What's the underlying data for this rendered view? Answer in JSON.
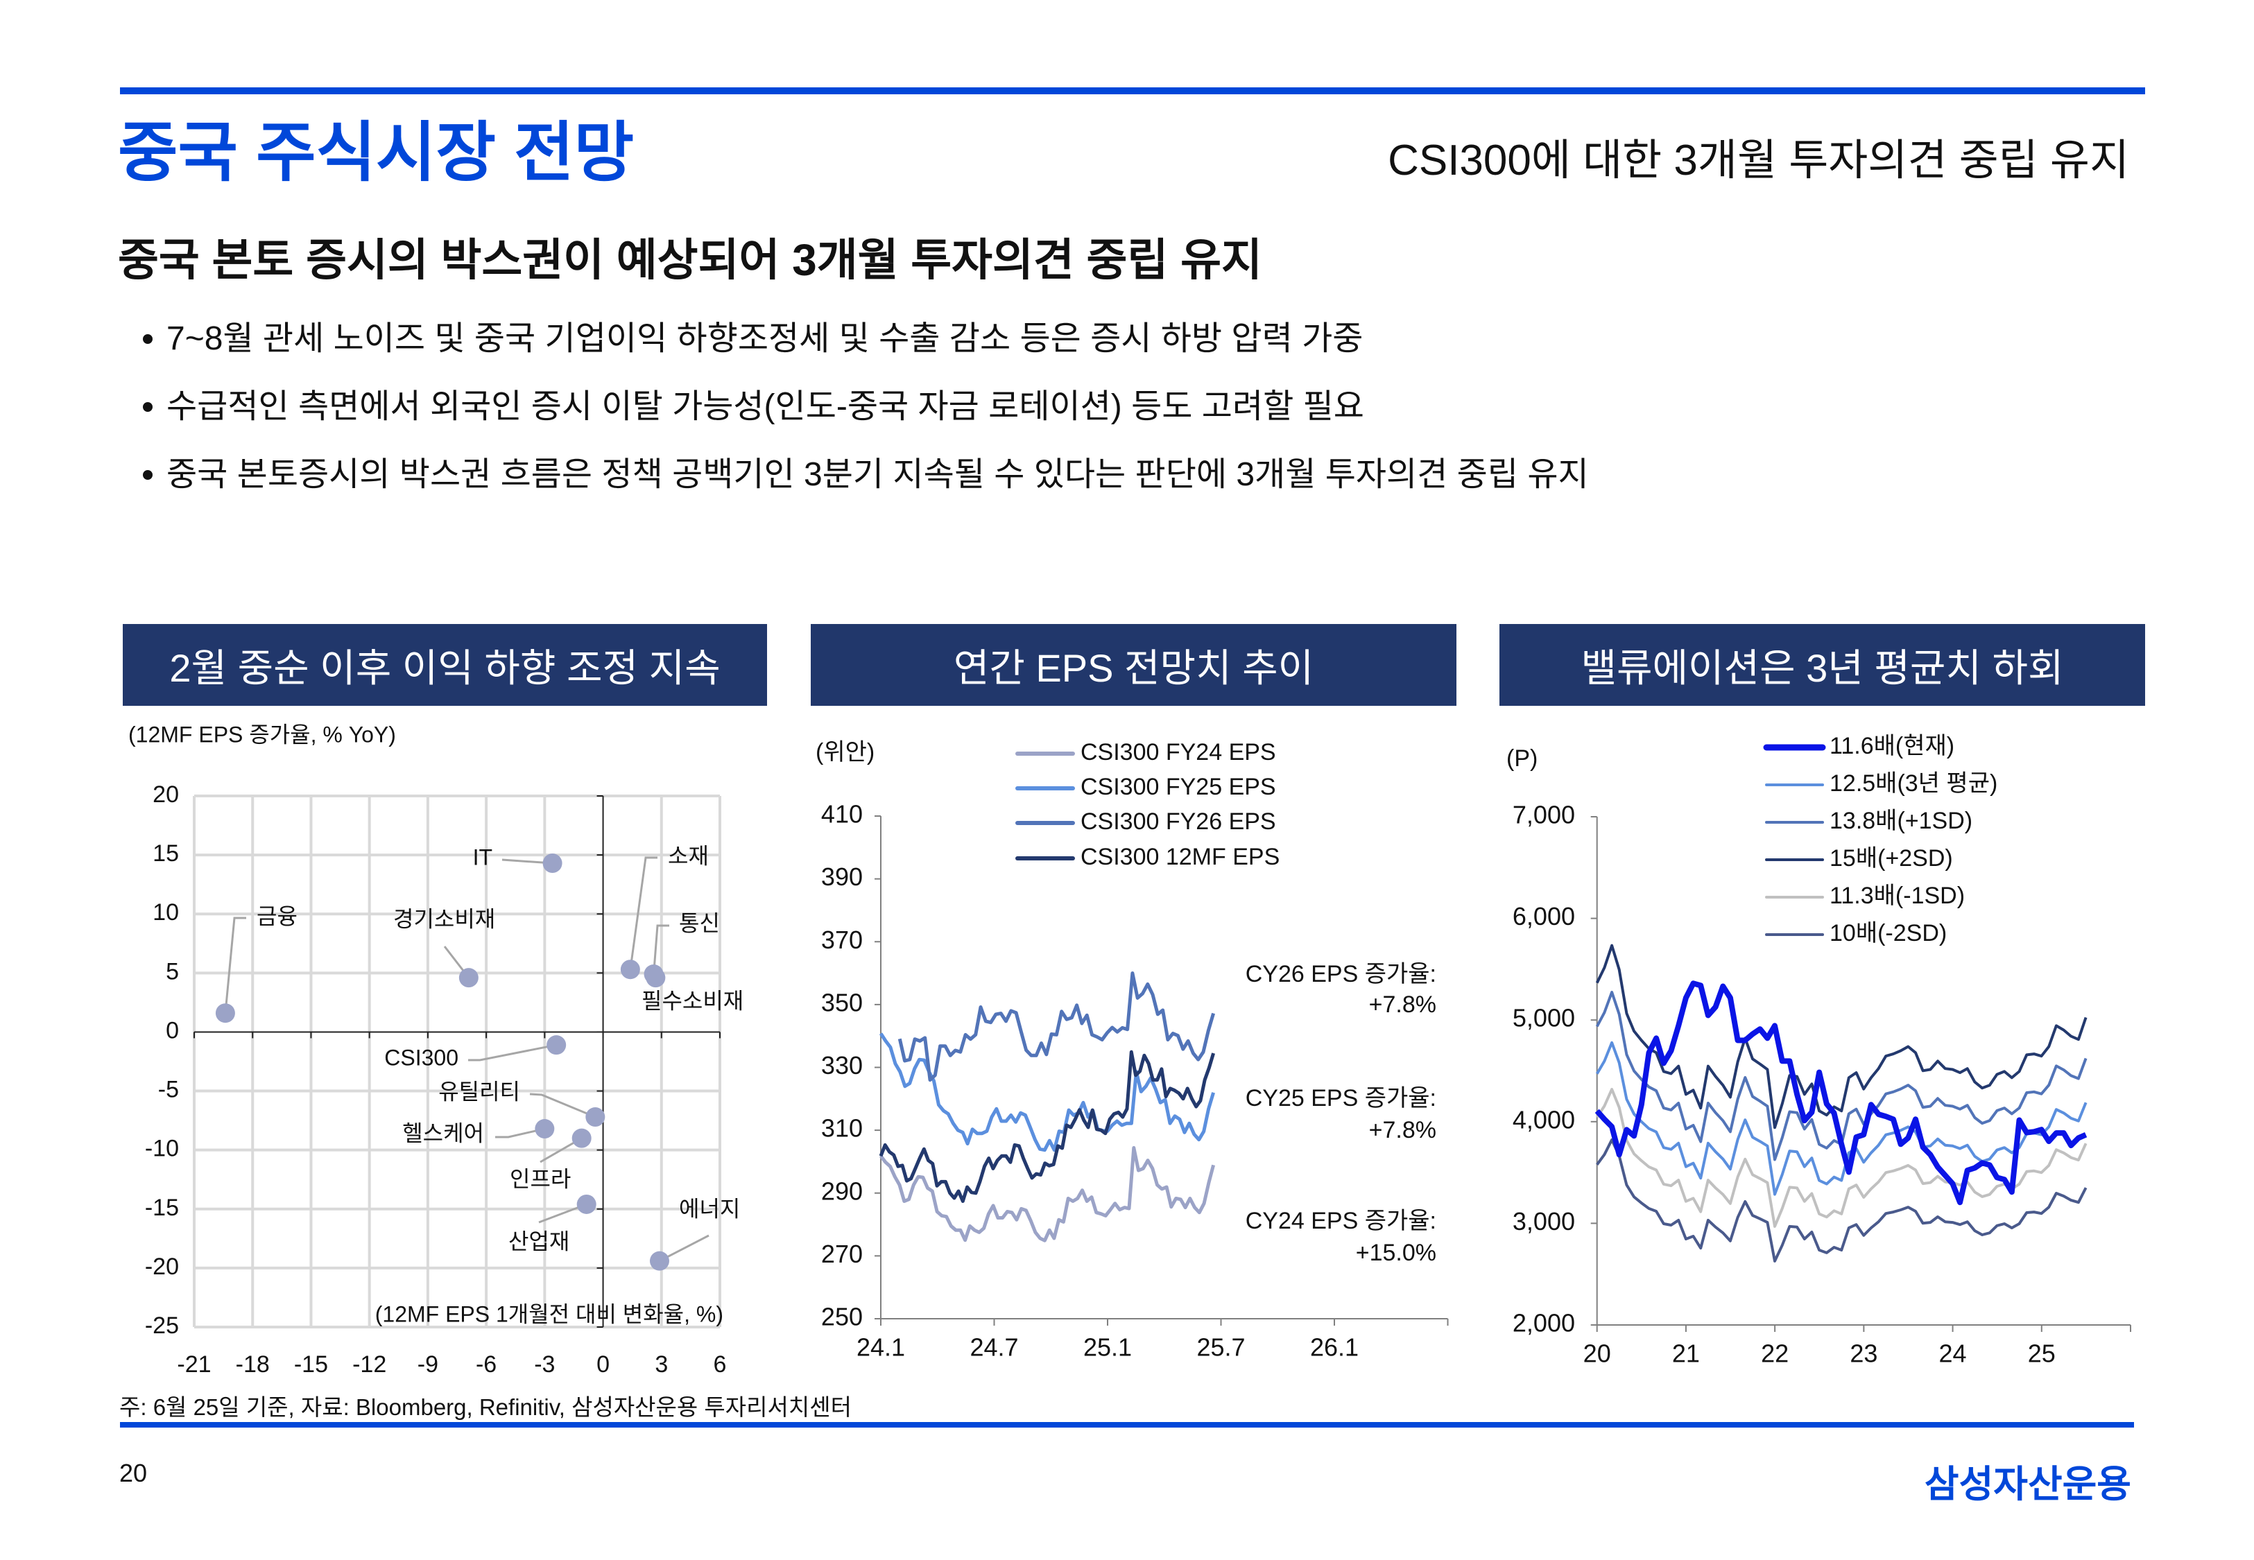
{
  "header": {
    "title": "중국 주식시장 전망",
    "subtitle": "CSI300에 대한 3개월 투자의견 중립 유지",
    "accent_color": "#0047d9"
  },
  "main": {
    "headline": "중국 본토 증시의 박스권이 예상되어 3개월 투자의견 중립 유지",
    "bullets": [
      "7~8월 관세 노이즈 및  중국 기업이익 하향조정세 및 수출 감소 등은 증시 하방 압력 가중",
      "수급적인 측면에서 외국인 증시 이탈 가능성(인도-중국 자금 로테이션) 등도 고려할 필요",
      "중국 본토증시의 박스권 흐름은 정책 공백기인 3분기 지속될 수 있다는 판단에 3개월 투자의견 중립 유지"
    ],
    "panel_header_color": "#21376b"
  },
  "chart_data": [
    {
      "type": "scatter",
      "title": "2월 중순 이후 이익 하향 조정 지속",
      "ylabel": "(12MF EPS 증가율, % YoY)",
      "xlabel": "(12MF EPS 1개월전 대비 변화율, %)",
      "xlim": [
        -21,
        6
      ],
      "ylim": [
        -25,
        20
      ],
      "grid": true,
      "xticks": [
        -21,
        -18,
        -15,
        -12,
        -9,
        -6,
        -3,
        0,
        3,
        6
      ],
      "xtick_labels": [
        "-21",
        "-18",
        "-15",
        "-12",
        "-9",
        "-6",
        "-3",
        "0",
        "3",
        "6"
      ],
      "yticks": [
        20,
        15,
        10,
        5,
        0,
        -5,
        -10,
        -15,
        -20,
        -25
      ],
      "ytick_labels": [
        "20",
        "15",
        "10",
        "5",
        "0",
        "-5",
        "-10",
        "-15",
        "-20",
        "-25"
      ],
      "marker_color": "#9ba3c7",
      "points": [
        {
          "label": "금융",
          "x": -19.4,
          "y": 1.6
        },
        {
          "label": "IT",
          "x": -2.6,
          "y": 14.3
        },
        {
          "label": "경기소비재",
          "x": -6.9,
          "y": 4.6
        },
        {
          "label": "소재",
          "x": 1.4,
          "y": 5.3
        },
        {
          "label": "통신",
          "x": 2.6,
          "y": 4.9
        },
        {
          "label": "필수소비재",
          "x": 2.7,
          "y": 4.6
        },
        {
          "label": "CSI300",
          "x": -2.4,
          "y": -1.1
        },
        {
          "label": "유틸리티",
          "x": -0.4,
          "y": -7.2
        },
        {
          "label": "헬스케어",
          "x": -3.0,
          "y": -8.2
        },
        {
          "label": "인프라",
          "x": -1.1,
          "y": -9.0
        },
        {
          "label": "산업재",
          "x": -0.85,
          "y": -14.6
        },
        {
          "label": "에너지",
          "x": 2.9,
          "y": -19.4
        }
      ]
    },
    {
      "type": "line",
      "title": "연간 EPS 전망치 추이",
      "ylabel": "(위안)",
      "ylim": [
        250,
        410
      ],
      "yticks": [
        250,
        270,
        290,
        310,
        330,
        350,
        370,
        390,
        410
      ],
      "ytick_labels": [
        "250",
        "270",
        "290",
        "310",
        "330",
        "350",
        "370",
        "390",
        "410"
      ],
      "x_unit": "months since 24.1",
      "xlim": [
        0,
        30
      ],
      "xticks": [
        0,
        6,
        12,
        18,
        24
      ],
      "xtick_labels": [
        "24.1",
        "24.7",
        "25.1",
        "25.7",
        "26.1"
      ],
      "legend": "top-center",
      "series": [
        {
          "name": "CSI300 FY24 EPS",
          "color": "#9ba3c7",
          "x_start": 0,
          "x_end": 17.6,
          "values": [
            301.8,
            299.8,
            298.5,
            295.2,
            292.6,
            287.4,
            288,
            292.6,
            295.2,
            295,
            291.6,
            290.6,
            284.1,
            282.8,
            282.5,
            279.5,
            278.2,
            278.2,
            275,
            279.5,
            278.2,
            277.5,
            278.8,
            283.4,
            286,
            282.1,
            282.1,
            284.1,
            283.8,
            281.5,
            285,
            284.5,
            281.2,
            277.5,
            275.6,
            274.9,
            278.2,
            275.6,
            281.5,
            280.8,
            288.3,
            287.4,
            288.3,
            290.9,
            287.4,
            288.7,
            283.8,
            283.4,
            282.8,
            284.7,
            286.7,
            284.7,
            285.4,
            285.1,
            304.4,
            297.2,
            297.8,
            300.4,
            297.8,
            292.6,
            291.3,
            291.9,
            285.6,
            288.3,
            288,
            285.4,
            288.3,
            285.4,
            283.8,
            286.7,
            293.2,
            298.9
          ]
        },
        {
          "name": "CSI300 FY25 EPS",
          "color": "#5b8fde",
          "x_start": 0,
          "x_end": 17.6,
          "values": [
            340.8,
            338.4,
            336.4,
            331.2,
            328.6,
            324,
            324.9,
            329.6,
            332.5,
            332.3,
            328.6,
            325.7,
            318.1,
            316.2,
            315.2,
            312.2,
            310,
            309.3,
            305.7,
            310.3,
            309,
            309,
            309.7,
            314.2,
            316.8,
            312.9,
            312.9,
            314.8,
            312.6,
            315.5,
            314.8,
            310.9,
            307,
            304,
            303.7,
            306.7,
            303.7,
            309.7,
            309.3,
            316.4,
            314.8,
            315.5,
            318.8,
            314.2,
            316.2,
            310.3,
            309.9,
            309.7,
            311.6,
            312.9,
            311.6,
            312.2,
            312.2,
            328.6,
            322.3,
            324,
            326.6,
            323.1,
            318.8,
            319.7,
            312.2,
            314.5,
            313.5,
            309.3,
            312.2,
            308.7,
            307,
            309.6,
            316.8,
            322
          ]
        },
        {
          "name": "CSI300 FY26 EPS",
          "color": "#5274b8",
          "x_start": 1.0,
          "x_end": 17.6,
          "values": [
            339.1,
            332.1,
            332.5,
            339,
            338.4,
            339.4,
            326,
            327.5,
            336.8,
            336.8,
            333.8,
            335.4,
            334.9,
            340.4,
            339,
            340.4,
            349.2,
            344.7,
            344.3,
            346.9,
            347.2,
            344.7,
            348,
            347.4,
            341.3,
            335.5,
            333.8,
            333.8,
            337.7,
            334.1,
            340.6,
            340.4,
            347.8,
            345.3,
            345.8,
            349.8,
            344,
            346.6,
            340.4,
            339.7,
            338.8,
            341,
            342.7,
            341.3,
            342.6,
            342.1,
            360,
            352.1,
            353.5,
            356.5,
            353.2,
            346.9,
            348.2,
            338.8,
            340.8,
            340.1,
            335.8,
            338.4,
            334.5,
            332.5,
            334.9,
            341.7,
            347.2
          ]
        },
        {
          "name": "CSI300 12MF EPS",
          "color": "#23396e",
          "x_start": 0,
          "x_end": 17.6,
          "values": [
            301.8,
            305.3,
            303.1,
            302.1,
            298.5,
            298.8,
            293.9,
            294.6,
            297.8,
            301.1,
            304,
            300.4,
            299.4,
            292.3,
            293.6,
            293.6,
            290,
            288.4,
            290.6,
            287.4,
            291.9,
            290.2,
            290,
            293.9,
            298.5,
            301.1,
            297.8,
            300.4,
            301.8,
            301.8,
            299.8,
            305.3,
            305,
            301.1,
            297.8,
            294.8,
            296.1,
            295.8,
            299.5,
            298.7,
            299.1,
            305,
            304.3,
            311.6,
            310.9,
            313.5,
            316.5,
            313.2,
            310.9,
            316.4,
            310.3,
            310,
            309,
            313.5,
            315.2,
            315.7,
            314.2,
            316.8,
            334.9,
            327.5,
            328.8,
            333.8,
            331.2,
            326,
            326,
            329.5,
            320.7,
            323.3,
            322.7,
            321.8,
            320,
            323.3,
            320,
            317.5,
            319.4,
            326,
            329.9,
            334.5
          ]
        }
      ],
      "annotations": [
        {
          "label": "CY26 EPS 증가율:",
          "value": "+7.8%"
        },
        {
          "label": "CY25 EPS 증가율:",
          "value": "+7.8%"
        },
        {
          "label": "CY24 EPS 증가율:",
          "value": "+15.0%"
        }
      ]
    },
    {
      "type": "line",
      "title": "밸류에이션은 3년 평균치 하회",
      "ylabel": "(P)",
      "ylim": [
        2000,
        7000
      ],
      "yticks": [
        2000,
        3000,
        4000,
        5000,
        6000,
        7000
      ],
      "ytick_labels": [
        "2,000",
        "3,000",
        "4,000",
        "5,000",
        "6,000",
        "7,000"
      ],
      "xlim": [
        20,
        26
      ],
      "xticks": [
        20,
        21,
        22,
        23,
        24,
        25
      ],
      "xtick_labels": [
        "20",
        "21",
        "22",
        "23",
        "24",
        "25"
      ],
      "x_start": 20,
      "x_step": 0.0833,
      "legend": "top-center",
      "implied_12mf_eps": [
        357.7,
        367.7,
        382.2,
        366.4,
        337.7,
        326,
        320,
        314.6,
        311.9,
        299.6,
        298.2,
        303.1,
        284.6,
        287.3,
        275.6,
        303.1,
        296.3,
        290.6,
        282.7,
        305.9,
        321.4,
        307.8,
        304.5,
        300.9,
        262.8,
        278.3,
        296.9,
        296.3,
        284.6,
        291.4,
        273.7,
        271,
        276.4,
        273.7,
        295.5,
        298.8,
        288.1,
        295.5,
        301.5,
        309.7,
        311.1,
        313.2,
        315.9,
        311.9,
        300.1,
        300.9,
        306.4,
        301.5,
        300.9,
        298.8,
        301.5,
        292.7,
        288.7,
        290.6,
        297.7,
        299.6,
        295.5,
        299.6,
        310.5,
        311.1,
        309.7,
        315.9,
        329.6,
        326.8,
        322.7,
        320.6,
        335
      ],
      "series": [
        {
          "name": "11.6배(현재)",
          "color": "#0a14e6",
          "role": "index",
          "values": [
            4106,
            4024,
            3950,
            3676,
            3921,
            3860,
            4167,
            4678,
            4821,
            4575,
            4698,
            4944,
            5218,
            5361,
            5340,
            5046,
            5128,
            5332,
            5218,
            4800,
            4800,
            4862,
            4911,
            4821,
            4944,
            4596,
            4596,
            4269,
            4011,
            4093,
            4486,
            4175,
            4085,
            3778,
            3504,
            3848,
            3872,
            4167,
            4073,
            4052,
            4024,
            3778,
            3840,
            4024,
            3750,
            3676,
            3554,
            3472,
            3390,
            3206,
            3521,
            3545,
            3594,
            3574,
            3451,
            3431,
            3308,
            4016,
            3893,
            3901,
            3922,
            3807,
            3889,
            3889,
            3766,
            3840,
            3872
          ]
        },
        {
          "name": "12.5배(3년 평균)",
          "color": "#5b8fde",
          "multiple": 12.5
        },
        {
          "name": "13.8배(+1SD)",
          "color": "#5274b8",
          "multiple": 13.8
        },
        {
          "name": "15배(+2SD)",
          "color": "#23396e",
          "multiple": 15
        },
        {
          "name": "11.3배(-1SD)",
          "color": "#c0c0c0",
          "multiple": 11.3
        },
        {
          "name": "10배(-2SD)",
          "color": "#4a5a8c",
          "multiple": 10
        }
      ]
    }
  ],
  "footer": {
    "note": "주: 6월 25일 기준, 자료: Bloomberg, Refinitiv, 삼성자산운용 투자리서치센터",
    "page_number": "20",
    "logo_text": "삼성자산운용"
  }
}
